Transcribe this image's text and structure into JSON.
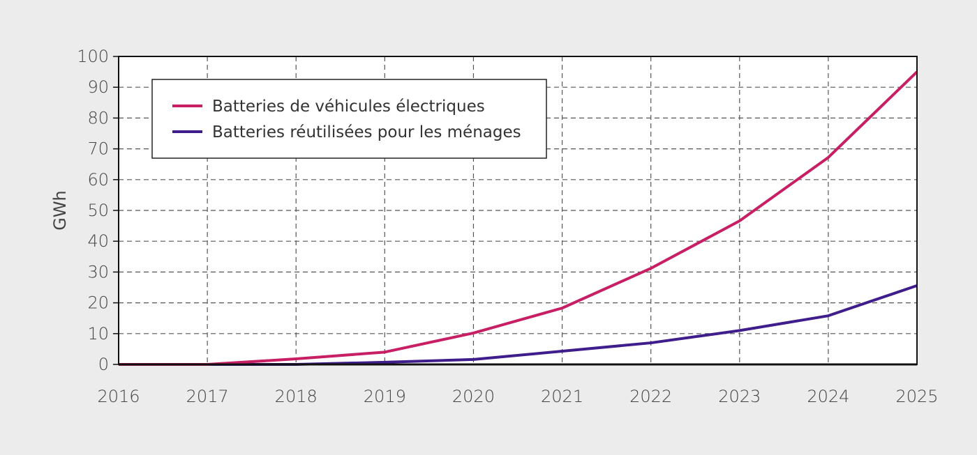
{
  "chart_data": {
    "type": "line",
    "title": "",
    "xlabel": "",
    "ylabel": "GWh",
    "x": [
      2016,
      2017,
      2018,
      2019,
      2020,
      2021,
      2022,
      2023,
      2024,
      2025
    ],
    "x_ticks": [
      "2016",
      "2017",
      "2018",
      "2019",
      "2020",
      "2021",
      "2022",
      "2023",
      "2024",
      "2025"
    ],
    "y_ticks": [
      "0",
      "10",
      "20",
      "30",
      "40",
      "50",
      "60",
      "70",
      "80",
      "90",
      "100"
    ],
    "ylim": [
      0,
      100
    ],
    "grid": true,
    "legend_position": "top-left",
    "series": [
      {
        "name": "Batteries de véhicules électriques",
        "color": "#c81e64",
        "values": [
          0,
          0,
          1.8,
          4,
          10.2,
          18.3,
          31.2,
          46.6,
          67.2,
          95
        ]
      },
      {
        "name": "Batteries réutilisées pour les ménages",
        "color": "#3f1d8c",
        "values": [
          0,
          0,
          0,
          0.7,
          1.6,
          4.3,
          7,
          11,
          15.8,
          25.6
        ]
      }
    ]
  }
}
